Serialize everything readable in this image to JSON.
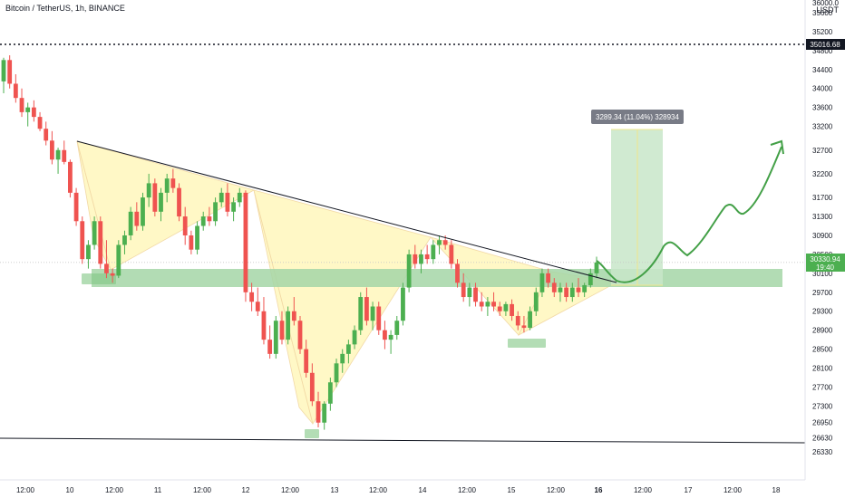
{
  "header": {
    "symbol_line": "Bitcoin / TetherUS, 1h, BINANCE",
    "currency": "USDT"
  },
  "colors": {
    "up": "#4caf50",
    "down": "#ef5350",
    "pattern_fill": "#fff5b3",
    "zone_fill": "#a5d6a7",
    "target_fill": "#c8e6c9",
    "projection": "#43a047",
    "trendline": "#131722"
  },
  "chart_data": {
    "type": "candlestick",
    "y_axis": {
      "min": 26130,
      "max": 36000,
      "ticks": [
        26330,
        26630,
        26950,
        27300,
        27700,
        28100,
        28500,
        28900,
        29300,
        29700,
        30100,
        30500,
        30900,
        31300,
        31700,
        32200,
        32700,
        33200,
        33600,
        34000,
        34400,
        34800,
        35200,
        35600
      ]
    },
    "x_axis": {
      "labels": [
        "12:00",
        "10",
        "12:00",
        "11",
        "12:00",
        "12",
        "12:00",
        "13",
        "12:00",
        "14",
        "12:00",
        "15",
        "12:00",
        "16",
        "12:00",
        "17",
        "12:00",
        "18"
      ],
      "bold_label": "16"
    },
    "price_markers": {
      "dotted_level": "35016.68",
      "current_price": "30330.94",
      "countdown": "19:40",
      "top_partial": "36000.0"
    },
    "measure_label": "3289.34 (11.04%) 328934",
    "candles": [
      [
        34150,
        34650,
        33900,
        34600
      ],
      [
        34600,
        34700,
        34000,
        34100
      ],
      [
        34100,
        34300,
        33700,
        33800
      ],
      [
        33800,
        34000,
        33400,
        33500
      ],
      [
        33500,
        33700,
        33200,
        33600
      ],
      [
        33600,
        33750,
        33300,
        33400
      ],
      [
        33400,
        33500,
        33100,
        33150
      ],
      [
        33150,
        33300,
        32800,
        32900
      ],
      [
        32900,
        33100,
        32400,
        32500
      ],
      [
        32500,
        32750,
        32200,
        32700
      ],
      [
        32700,
        32900,
        32400,
        32450
      ],
      [
        32450,
        32500,
        31700,
        31800
      ],
      [
        31800,
        31900,
        31100,
        31200
      ],
      [
        31200,
        31300,
        30300,
        30400
      ],
      [
        30400,
        30800,
        30200,
        30700
      ],
      [
        30700,
        31300,
        30600,
        31200
      ],
      [
        31200,
        31300,
        30200,
        30300
      ],
      [
        30300,
        30800,
        30000,
        30100
      ],
      [
        30100,
        30200,
        29900,
        30050
      ],
      [
        30050,
        30800,
        30000,
        30700
      ],
      [
        30700,
        31000,
        30500,
        30900
      ],
      [
        30900,
        31500,
        30800,
        31400
      ],
      [
        31400,
        31600,
        31000,
        31100
      ],
      [
        31100,
        31800,
        31000,
        31700
      ],
      [
        31700,
        32200,
        31500,
        32000
      ],
      [
        32000,
        32100,
        31300,
        31400
      ],
      [
        31400,
        31900,
        31200,
        31800
      ],
      [
        31800,
        32200,
        31600,
        32100
      ],
      [
        32100,
        32300,
        31800,
        31900
      ],
      [
        31900,
        32000,
        31200,
        31300
      ],
      [
        31300,
        31500,
        30700,
        30900
      ],
      [
        30900,
        31000,
        30500,
        30600
      ],
      [
        30600,
        31200,
        30500,
        31100
      ],
      [
        31100,
        31400,
        31000,
        31300
      ],
      [
        31300,
        31500,
        31100,
        31200
      ],
      [
        31200,
        31700,
        31100,
        31600
      ],
      [
        31600,
        31900,
        31500,
        31800
      ],
      [
        31800,
        32000,
        31300,
        31400
      ],
      [
        31400,
        31700,
        31200,
        31600
      ],
      [
        31600,
        31900,
        31500,
        31800
      ],
      [
        31800,
        31850,
        29500,
        29700
      ],
      [
        29700,
        29900,
        29300,
        29500
      ],
      [
        29500,
        29800,
        29200,
        29300
      ],
      [
        29300,
        29600,
        28600,
        28700
      ],
      [
        28700,
        29000,
        28300,
        28400
      ],
      [
        28400,
        29200,
        28300,
        29100
      ],
      [
        29100,
        29300,
        28600,
        28700
      ],
      [
        28700,
        29400,
        28600,
        29300
      ],
      [
        29300,
        29600,
        29000,
        29100
      ],
      [
        29100,
        29200,
        28400,
        28500
      ],
      [
        28500,
        28700,
        27900,
        28000
      ],
      [
        28000,
        28200,
        27300,
        27400
      ],
      [
        27400,
        27600,
        26850,
        26950
      ],
      [
        26950,
        27400,
        26800,
        27350
      ],
      [
        27350,
        27900,
        27200,
        27800
      ],
      [
        27800,
        28300,
        27700,
        28200
      ],
      [
        28200,
        28500,
        28000,
        28400
      ],
      [
        28400,
        28700,
        28200,
        28600
      ],
      [
        28600,
        29000,
        28500,
        28900
      ],
      [
        28900,
        29700,
        28800,
        29600
      ],
      [
        29600,
        29800,
        29000,
        29100
      ],
      [
        29100,
        29500,
        28900,
        29400
      ],
      [
        29400,
        29500,
        28800,
        28900
      ],
      [
        28900,
        29100,
        28500,
        28700
      ],
      [
        28700,
        28900,
        28400,
        28800
      ],
      [
        28800,
        29200,
        28700,
        29100
      ],
      [
        29100,
        29900,
        29000,
        29800
      ],
      [
        29800,
        30600,
        29700,
        30500
      ],
      [
        30500,
        30700,
        30200,
        30300
      ],
      [
        30300,
        30600,
        30100,
        30500
      ],
      [
        30500,
        30700,
        30300,
        30400
      ],
      [
        30400,
        30800,
        30300,
        30700
      ],
      [
        30700,
        30900,
        30500,
        30800
      ],
      [
        30800,
        30900,
        30600,
        30700
      ],
      [
        30700,
        30800,
        30200,
        30300
      ],
      [
        30300,
        30400,
        29800,
        29900
      ],
      [
        29900,
        30100,
        29500,
        29600
      ],
      [
        29600,
        29900,
        29400,
        29800
      ],
      [
        29800,
        29900,
        29400,
        29500
      ],
      [
        29500,
        29700,
        29300,
        29400
      ],
      [
        29400,
        29600,
        29200,
        29500
      ],
      [
        29500,
        29700,
        29300,
        29400
      ],
      [
        29400,
        29500,
        29200,
        29300
      ],
      [
        29300,
        29500,
        29200,
        29450
      ],
      [
        29450,
        29550,
        29100,
        29200
      ],
      [
        29200,
        29300,
        28900,
        29000
      ],
      [
        29000,
        29200,
        28850,
        28950
      ],
      [
        28950,
        29400,
        28900,
        29300
      ],
      [
        29300,
        29800,
        29200,
        29700
      ],
      [
        29700,
        30200,
        29600,
        30100
      ],
      [
        30100,
        30200,
        29800,
        29900
      ],
      [
        29900,
        30000,
        29600,
        29700
      ],
      [
        29700,
        29900,
        29500,
        29800
      ],
      [
        29800,
        29900,
        29500,
        29600
      ],
      [
        29600,
        29900,
        29500,
        29800
      ],
      [
        29800,
        30000,
        29600,
        29700
      ],
      [
        29700,
        29900,
        29600,
        29850
      ],
      [
        29850,
        30200,
        29800,
        30100
      ],
      [
        30100,
        30450,
        30000,
        30330
      ]
    ]
  }
}
